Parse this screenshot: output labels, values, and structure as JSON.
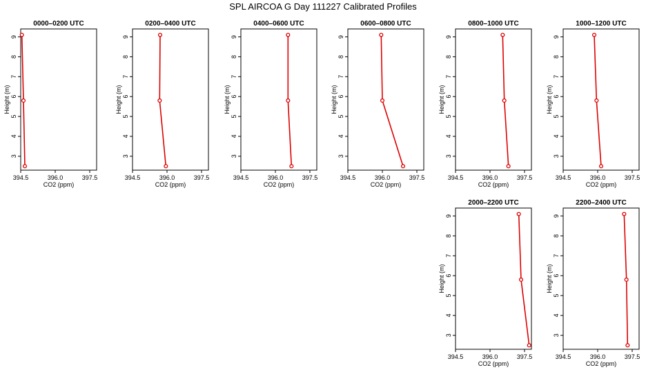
{
  "figure": {
    "title": "SPL AIRCOA G  Day 111227  Calibrated Profiles",
    "line_color": "#dd0000",
    "marker_color": "#dd0000"
  },
  "chart_data": [
    {
      "type": "line",
      "title": "0000–0200 UTC",
      "xlabel": "CO2 (ppm)",
      "ylabel": "Height (m)",
      "xlim": [
        394.5,
        397.8
      ],
      "ylim": [
        2.3,
        9.4
      ],
      "xticks": [
        "394.5",
        "396.0",
        "397.5"
      ],
      "yticks": [
        "3",
        "4",
        "5",
        "6",
        "7",
        "8",
        "9"
      ],
      "series": [
        {
          "x": [
            394.55,
            394.62,
            394.68
          ],
          "y": [
            9.1,
            5.8,
            2.5
          ]
        }
      ]
    },
    {
      "type": "line",
      "title": "0200–0400 UTC",
      "xlabel": "CO2 (ppm)",
      "ylabel": "Height (m)",
      "xlim": [
        394.5,
        397.8
      ],
      "ylim": [
        2.3,
        9.4
      ],
      "xticks": [
        "394.5",
        "396.0",
        "397.5"
      ],
      "yticks": [
        "3",
        "4",
        "5",
        "6",
        "7",
        "8",
        "9"
      ],
      "series": [
        {
          "x": [
            395.7,
            395.68,
            395.95
          ],
          "y": [
            9.1,
            5.8,
            2.5
          ]
        }
      ]
    },
    {
      "type": "line",
      "title": "0400–0600 UTC",
      "xlabel": "CO2 (ppm)",
      "ylabel": "Height (m)",
      "xlim": [
        394.5,
        397.8
      ],
      "ylim": [
        2.3,
        9.4
      ],
      "xticks": [
        "394.5",
        "396.0",
        "397.5"
      ],
      "yticks": [
        "3",
        "4",
        "5",
        "6",
        "7",
        "8",
        "9"
      ],
      "series": [
        {
          "x": [
            396.55,
            396.55,
            396.7
          ],
          "y": [
            9.1,
            5.8,
            2.5
          ]
        }
      ]
    },
    {
      "type": "line",
      "title": "0600–0800 UTC",
      "xlabel": "CO2 (ppm)",
      "ylabel": "Height (m)",
      "xlim": [
        394.5,
        397.8
      ],
      "ylim": [
        2.3,
        9.4
      ],
      "xticks": [
        "394.5",
        "396.0",
        "397.5"
      ],
      "yticks": [
        "3",
        "4",
        "5",
        "6",
        "7",
        "8",
        "9"
      ],
      "series": [
        {
          "x": [
            395.95,
            396.0,
            396.9
          ],
          "y": [
            9.1,
            5.8,
            2.5
          ]
        }
      ]
    },
    {
      "type": "line",
      "title": "0800–1000 UTC",
      "xlabel": "CO2 (ppm)",
      "ylabel": "Height (m)",
      "xlim": [
        394.5,
        397.8
      ],
      "ylim": [
        2.3,
        9.4
      ],
      "xticks": [
        "394.5",
        "396.0",
        "397.5"
      ],
      "yticks": [
        "3",
        "4",
        "5",
        "6",
        "7",
        "8",
        "9"
      ],
      "series": [
        {
          "x": [
            396.55,
            396.62,
            396.8
          ],
          "y": [
            9.1,
            5.8,
            2.5
          ]
        }
      ]
    },
    {
      "type": "line",
      "title": "1000–1200 UTC",
      "xlabel": "CO2 (ppm)",
      "ylabel": "Height (m)",
      "xlim": [
        394.5,
        397.8
      ],
      "ylim": [
        2.3,
        9.4
      ],
      "xticks": [
        "394.5",
        "396.0",
        "397.5"
      ],
      "yticks": [
        "3",
        "4",
        "5",
        "6",
        "7",
        "8",
        "9"
      ],
      "series": [
        {
          "x": [
            395.85,
            395.95,
            396.15
          ],
          "y": [
            9.1,
            5.8,
            2.5
          ]
        }
      ]
    },
    {
      "type": "line",
      "title": "2000–2200 UTC",
      "xlabel": "CO2 (ppm)",
      "ylabel": "Height (m)",
      "xlim": [
        394.5,
        397.8
      ],
      "ylim": [
        2.3,
        9.4
      ],
      "xticks": [
        "394.5",
        "396.0",
        "397.5"
      ],
      "yticks": [
        "3",
        "4",
        "5",
        "6",
        "7",
        "8",
        "9"
      ],
      "series": [
        {
          "x": [
            397.25,
            397.35,
            397.7
          ],
          "y": [
            9.1,
            5.8,
            2.5
          ]
        }
      ]
    },
    {
      "type": "line",
      "title": "2200–2400 UTC",
      "xlabel": "CO2 (ppm)",
      "ylabel": "Height (m)",
      "xlim": [
        394.5,
        397.8
      ],
      "ylim": [
        2.3,
        9.4
      ],
      "xticks": [
        "394.5",
        "396.0",
        "397.5"
      ],
      "yticks": [
        "3",
        "4",
        "5",
        "6",
        "7",
        "8",
        "9"
      ],
      "series": [
        {
          "x": [
            397.15,
            397.25,
            397.3
          ],
          "y": [
            9.1,
            5.8,
            2.5
          ]
        }
      ]
    }
  ]
}
